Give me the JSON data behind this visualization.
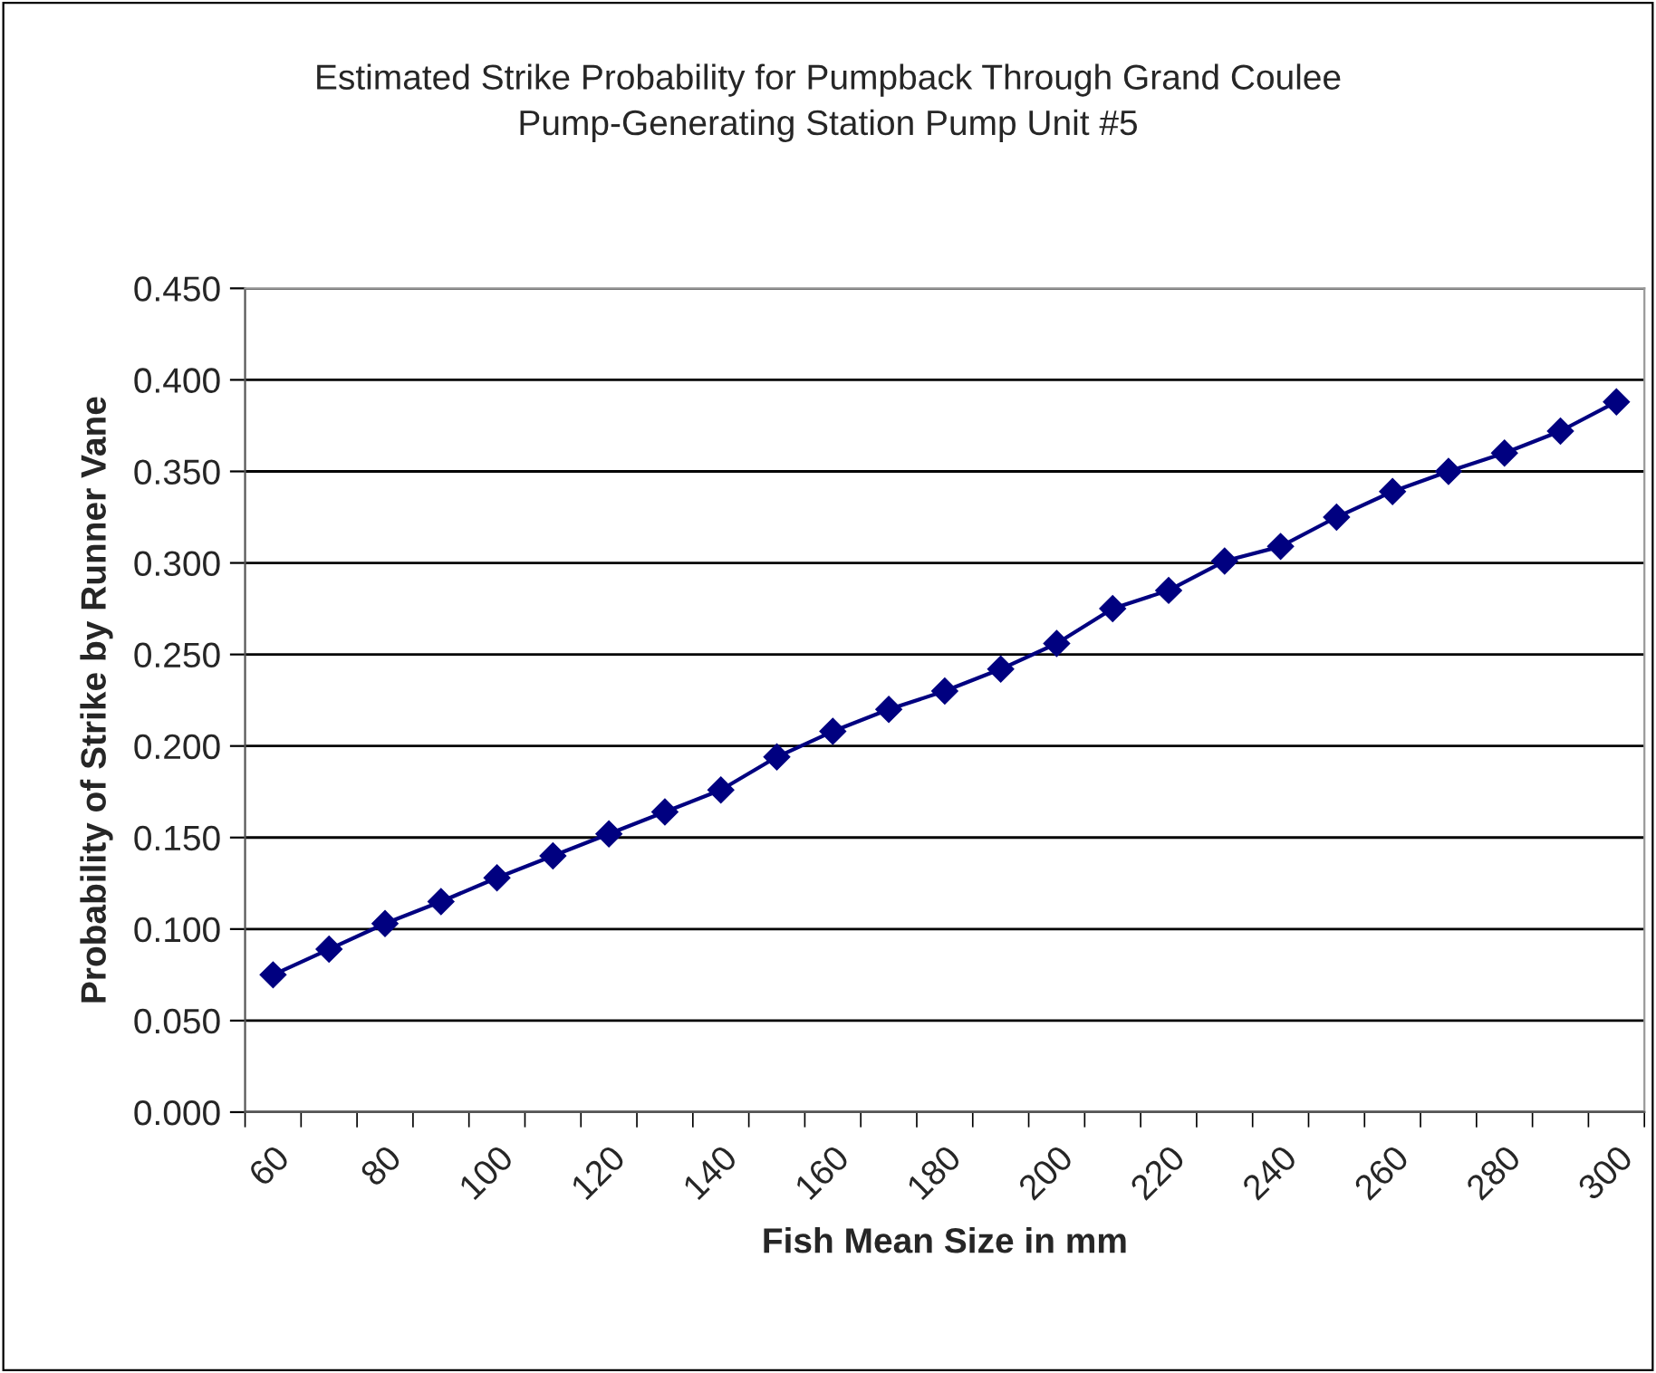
{
  "chart_data": {
    "type": "line",
    "title": "Estimated Strike Probability for Pumpback Through Grand Coulee\nPump-Generating Station Pump Unit #5",
    "xlabel": "Fish Mean Size in mm",
    "ylabel": "Probability of Strike by Runner Vane",
    "categories": [
      "60",
      null,
      "80",
      null,
      "100",
      null,
      "120",
      null,
      "140",
      null,
      "160",
      null,
      "180",
      null,
      "200",
      null,
      "220",
      null,
      "240",
      null,
      "260",
      null,
      "280",
      null,
      "300"
    ],
    "series": [
      {
        "color": "#000080",
        "values": [
          0.075,
          0.089,
          0.103,
          0.115,
          0.128,
          0.14,
          0.152,
          0.164,
          0.176,
          0.194,
          0.208,
          0.22,
          0.23,
          0.242,
          0.256,
          0.275,
          0.285,
          0.301,
          0.309,
          0.325,
          0.339,
          0.35,
          0.36,
          0.372,
          0.388
        ]
      }
    ],
    "ylim": [
      0,
      0.45
    ],
    "yticks": [
      {
        "value": 0,
        "label": "0.000"
      },
      {
        "value": 0.05,
        "label": "0.050"
      },
      {
        "value": 0.1,
        "label": "0.100"
      },
      {
        "value": 0.15,
        "label": "0.150"
      },
      {
        "value": 0.2,
        "label": "0.200"
      },
      {
        "value": 0.25,
        "label": "0.250"
      },
      {
        "value": 0.3,
        "label": "0.300"
      },
      {
        "value": 0.35,
        "label": "0.350"
      },
      {
        "value": 0.4,
        "label": "0.400"
      },
      {
        "value": 0.45,
        "label": "0.450"
      }
    ],
    "grid": "y",
    "marker": "diamond",
    "line_style": "solid"
  }
}
